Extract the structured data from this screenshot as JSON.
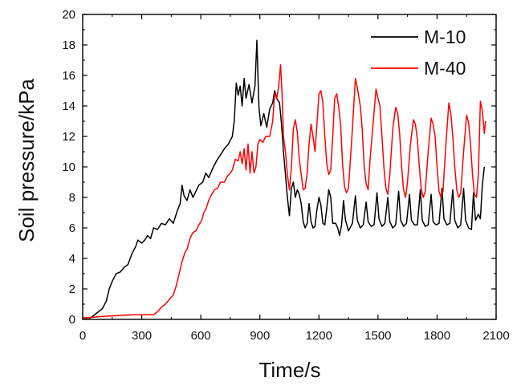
{
  "chart_data": {
    "type": "line",
    "title": "",
    "xlabel": "Time/s",
    "ylabel": "Soil pressure/kPa",
    "xlim": [
      0,
      2100
    ],
    "ylim": [
      0,
      20
    ],
    "xticks": [
      "0",
      "300",
      "600",
      "900",
      "1200",
      "1500",
      "1800",
      "2100"
    ],
    "yticks": [
      "0",
      "2",
      "4",
      "6",
      "8",
      "10",
      "12",
      "14",
      "16",
      "18",
      "20"
    ],
    "grid": false,
    "legend_position": "top-right",
    "series": [
      {
        "name": "M-10",
        "color": "#000000",
        "points": [
          [
            0,
            0.1
          ],
          [
            40,
            0.1
          ],
          [
            70,
            0.4
          ],
          [
            100,
            0.7
          ],
          [
            120,
            1.2
          ],
          [
            135,
            2.0
          ],
          [
            150,
            2.5
          ],
          [
            170,
            3.0
          ],
          [
            190,
            3.1
          ],
          [
            210,
            3.4
          ],
          [
            230,
            3.6
          ],
          [
            250,
            4.3
          ],
          [
            270,
            4.8
          ],
          [
            280,
            5.2
          ],
          [
            300,
            5.0
          ],
          [
            315,
            5.2
          ],
          [
            330,
            5.5
          ],
          [
            345,
            5.3
          ],
          [
            360,
            6.0
          ],
          [
            380,
            5.9
          ],
          [
            400,
            6.3
          ],
          [
            420,
            6.2
          ],
          [
            440,
            6.6
          ],
          [
            460,
            6.3
          ],
          [
            480,
            7.1
          ],
          [
            495,
            7.6
          ],
          [
            505,
            8.8
          ],
          [
            515,
            8.1
          ],
          [
            530,
            7.8
          ],
          [
            545,
            8.5
          ],
          [
            560,
            8.0
          ],
          [
            575,
            8.4
          ],
          [
            590,
            8.8
          ],
          [
            610,
            9.0
          ],
          [
            625,
            9.6
          ],
          [
            640,
            9.3
          ],
          [
            660,
            9.9
          ],
          [
            680,
            10.4
          ],
          [
            700,
            10.8
          ],
          [
            720,
            11.2
          ],
          [
            740,
            11.5
          ],
          [
            760,
            12.0
          ],
          [
            770,
            13.0
          ],
          [
            780,
            15.5
          ],
          [
            790,
            14.7
          ],
          [
            800,
            15.3
          ],
          [
            810,
            14.0
          ],
          [
            820,
            15.8
          ],
          [
            830,
            14.5
          ],
          [
            845,
            15.4
          ],
          [
            860,
            14.2
          ],
          [
            875,
            15.3
          ],
          [
            885,
            18.3
          ],
          [
            895,
            14.0
          ],
          [
            905,
            12.7
          ],
          [
            920,
            13.5
          ],
          [
            935,
            12.6
          ],
          [
            950,
            13.8
          ],
          [
            965,
            14.2
          ],
          [
            975,
            15.0
          ],
          [
            985,
            14.5
          ],
          [
            1000,
            14.2
          ],
          [
            1010,
            12.8
          ],
          [
            1020,
            11.0
          ],
          [
            1030,
            9.5
          ],
          [
            1040,
            8.0
          ],
          [
            1050,
            6.8
          ],
          [
            1060,
            8.6
          ],
          [
            1070,
            9.0
          ],
          [
            1080,
            8.0
          ],
          [
            1090,
            8.5
          ],
          [
            1100,
            8.2
          ],
          [
            1110,
            7.6
          ],
          [
            1120,
            6.4
          ],
          [
            1130,
            6.0
          ],
          [
            1140,
            6.3
          ],
          [
            1150,
            7.6
          ],
          [
            1160,
            6.4
          ],
          [
            1170,
            6.0
          ],
          [
            1180,
            6.1
          ],
          [
            1190,
            7.2
          ],
          [
            1200,
            8.0
          ],
          [
            1210,
            7.5
          ],
          [
            1220,
            6.3
          ],
          [
            1230,
            6.2
          ],
          [
            1240,
            7.3
          ],
          [
            1250,
            8.5
          ],
          [
            1260,
            8.0
          ],
          [
            1270,
            6.3
          ],
          [
            1285,
            6.3
          ],
          [
            1295,
            6.0
          ],
          [
            1305,
            5.5
          ],
          [
            1315,
            6.2
          ],
          [
            1325,
            7.8
          ],
          [
            1335,
            6.5
          ],
          [
            1350,
            5.8
          ],
          [
            1370,
            6.3
          ],
          [
            1385,
            8.1
          ],
          [
            1395,
            6.5
          ],
          [
            1410,
            6.0
          ],
          [
            1425,
            6.2
          ],
          [
            1440,
            7.7
          ],
          [
            1450,
            6.4
          ],
          [
            1465,
            6.1
          ],
          [
            1480,
            6.2
          ],
          [
            1495,
            8.3
          ],
          [
            1505,
            6.6
          ],
          [
            1520,
            6.1
          ],
          [
            1535,
            6.3
          ],
          [
            1550,
            8.0
          ],
          [
            1560,
            6.4
          ],
          [
            1575,
            6.0
          ],
          [
            1590,
            6.2
          ],
          [
            1605,
            8.4
          ],
          [
            1615,
            6.5
          ],
          [
            1630,
            6.1
          ],
          [
            1645,
            6.3
          ],
          [
            1660,
            8.2
          ],
          [
            1670,
            6.5
          ],
          [
            1685,
            6.2
          ],
          [
            1700,
            6.2
          ],
          [
            1715,
            8.5
          ],
          [
            1725,
            6.5
          ],
          [
            1740,
            6.1
          ],
          [
            1755,
            6.2
          ],
          [
            1770,
            8.2
          ],
          [
            1780,
            6.4
          ],
          [
            1795,
            6.2
          ],
          [
            1810,
            6.3
          ],
          [
            1825,
            8.6
          ],
          [
            1835,
            6.6
          ],
          [
            1850,
            6.2
          ],
          [
            1865,
            6.3
          ],
          [
            1880,
            8.5
          ],
          [
            1890,
            6.5
          ],
          [
            1905,
            6.0
          ],
          [
            1920,
            6.2
          ],
          [
            1935,
            8.6
          ],
          [
            1945,
            6.5
          ],
          [
            1960,
            6.0
          ],
          [
            1975,
            5.9
          ],
          [
            1985,
            8.3
          ],
          [
            1995,
            6.5
          ],
          [
            2010,
            6.9
          ],
          [
            2020,
            6.6
          ],
          [
            2030,
            8.8
          ],
          [
            2040,
            10.0
          ]
        ]
      },
      {
        "name": "M-40",
        "color": "#ff0000",
        "points": [
          [
            0,
            0.1
          ],
          [
            60,
            0.15
          ],
          [
            100,
            0.2
          ],
          [
            180,
            0.25
          ],
          [
            260,
            0.3
          ],
          [
            330,
            0.3
          ],
          [
            360,
            0.3
          ],
          [
            380,
            0.5
          ],
          [
            400,
            0.8
          ],
          [
            420,
            1.0
          ],
          [
            440,
            1.3
          ],
          [
            460,
            1.6
          ],
          [
            475,
            2.2
          ],
          [
            490,
            3.0
          ],
          [
            505,
            3.8
          ],
          [
            520,
            4.4
          ],
          [
            530,
            4.6
          ],
          [
            545,
            5.3
          ],
          [
            560,
            5.7
          ],
          [
            575,
            5.8
          ],
          [
            590,
            6.2
          ],
          [
            605,
            6.5
          ],
          [
            615,
            7.0
          ],
          [
            625,
            7.2
          ],
          [
            640,
            7.8
          ],
          [
            655,
            8.2
          ],
          [
            670,
            8.5
          ],
          [
            685,
            8.6
          ],
          [
            700,
            9.0
          ],
          [
            720,
            9.0
          ],
          [
            735,
            9.4
          ],
          [
            750,
            9.6
          ],
          [
            760,
            9.8
          ],
          [
            775,
            10.5
          ],
          [
            790,
            10.4
          ],
          [
            800,
            11.0
          ],
          [
            810,
            10.2
          ],
          [
            820,
            11.2
          ],
          [
            830,
            9.8
          ],
          [
            840,
            11.5
          ],
          [
            850,
            9.6
          ],
          [
            860,
            11.0
          ],
          [
            870,
            9.6
          ],
          [
            880,
            10.0
          ],
          [
            890,
            11.5
          ],
          [
            900,
            11.8
          ],
          [
            915,
            11.6
          ],
          [
            930,
            12.0
          ],
          [
            950,
            12.0
          ],
          [
            965,
            13.0
          ],
          [
            975,
            14.8
          ],
          [
            985,
            14.5
          ],
          [
            995,
            15.2
          ],
          [
            1005,
            16.7
          ],
          [
            1012,
            15.0
          ],
          [
            1020,
            12.0
          ],
          [
            1030,
            11.0
          ],
          [
            1040,
            9.5
          ],
          [
            1050,
            8.5
          ],
          [
            1060,
            10.0
          ],
          [
            1070,
            12.5
          ],
          [
            1080,
            13.1
          ],
          [
            1090,
            12.3
          ],
          [
            1100,
            10.5
          ],
          [
            1110,
            9.5
          ],
          [
            1120,
            8.5
          ],
          [
            1130,
            8.6
          ],
          [
            1140,
            9.6
          ],
          [
            1150,
            11.5
          ],
          [
            1160,
            12.8
          ],
          [
            1170,
            12.0
          ],
          [
            1180,
            11.0
          ],
          [
            1190,
            12.8
          ],
          [
            1200,
            14.8
          ],
          [
            1210,
            15.0
          ],
          [
            1220,
            14.2
          ],
          [
            1230,
            12.0
          ],
          [
            1240,
            10.2
          ],
          [
            1250,
            9.5
          ],
          [
            1260,
            9.8
          ],
          [
            1270,
            12.0
          ],
          [
            1280,
            14.5
          ],
          [
            1290,
            14.8
          ],
          [
            1300,
            14.0
          ],
          [
            1310,
            12.8
          ],
          [
            1320,
            10.2
          ],
          [
            1330,
            8.7
          ],
          [
            1340,
            8.3
          ],
          [
            1350,
            8.6
          ],
          [
            1360,
            10.5
          ],
          [
            1370,
            12.5
          ],
          [
            1385,
            15.8
          ],
          [
            1395,
            15.2
          ],
          [
            1410,
            14.0
          ],
          [
            1420,
            12.5
          ],
          [
            1430,
            10.0
          ],
          [
            1440,
            8.9
          ],
          [
            1450,
            8.5
          ],
          [
            1460,
            10.5
          ],
          [
            1475,
            12.8
          ],
          [
            1490,
            15.1
          ],
          [
            1500,
            14.5
          ],
          [
            1510,
            14.0
          ],
          [
            1520,
            12.0
          ],
          [
            1530,
            10.0
          ],
          [
            1540,
            8.6
          ],
          [
            1550,
            8.2
          ],
          [
            1560,
            9.5
          ],
          [
            1575,
            12.5
          ],
          [
            1590,
            13.9
          ],
          [
            1600,
            13.5
          ],
          [
            1610,
            12.2
          ],
          [
            1620,
            10.0
          ],
          [
            1630,
            8.5
          ],
          [
            1640,
            8.0
          ],
          [
            1650,
            9.0
          ],
          [
            1665,
            11.5
          ],
          [
            1680,
            13.1
          ],
          [
            1690,
            12.8
          ],
          [
            1700,
            11.8
          ],
          [
            1710,
            10.0
          ],
          [
            1720,
            8.5
          ],
          [
            1730,
            8.0
          ],
          [
            1740,
            8.4
          ],
          [
            1755,
            11.0
          ],
          [
            1770,
            13.2
          ],
          [
            1780,
            12.8
          ],
          [
            1790,
            12.0
          ],
          [
            1800,
            10.0
          ],
          [
            1810,
            8.4
          ],
          [
            1820,
            8.0
          ],
          [
            1830,
            8.4
          ],
          [
            1845,
            11.5
          ],
          [
            1860,
            14.2
          ],
          [
            1870,
            13.5
          ],
          [
            1880,
            12.0
          ],
          [
            1890,
            10.0
          ],
          [
            1900,
            8.5
          ],
          [
            1910,
            8.0
          ],
          [
            1920,
            8.3
          ],
          [
            1935,
            11.0
          ],
          [
            1950,
            13.4
          ],
          [
            1960,
            12.9
          ],
          [
            1970,
            11.5
          ],
          [
            1980,
            9.5
          ],
          [
            1990,
            8.2
          ],
          [
            2000,
            8.0
          ],
          [
            2010,
            9.5
          ],
          [
            2020,
            14.3
          ],
          [
            2030,
            13.7
          ],
          [
            2040,
            12.2
          ],
          [
            2046,
            13.0
          ]
        ]
      }
    ]
  }
}
